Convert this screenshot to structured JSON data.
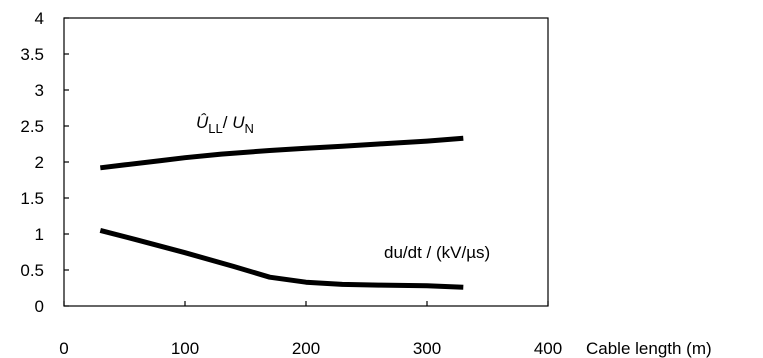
{
  "chart_data": {
    "type": "line",
    "xlabel": "Cable length (m)",
    "xlim": [
      0,
      400
    ],
    "ylim": [
      0,
      4
    ],
    "x_ticks": [
      "0",
      "100",
      "200",
      "300",
      "400"
    ],
    "y_ticks": [
      "0",
      "0.5",
      "1",
      "1.5",
      "2",
      "2.5",
      "3",
      "3.5",
      "4"
    ],
    "grid": false,
    "series": [
      {
        "name": "Û_LL / U_N",
        "label_parts": {
          "main1": "Û",
          "sub1": "LL",
          "sep": "/ ",
          "main2": "U",
          "sub2": "N"
        },
        "x": [
          30,
          50,
          80,
          100,
          130,
          170,
          200,
          230,
          260,
          300,
          330
        ],
        "y": [
          1.92,
          1.96,
          2.02,
          2.06,
          2.11,
          2.16,
          2.19,
          2.22,
          2.25,
          2.29,
          2.33
        ]
      },
      {
        "name": "du/dt / (kV/µs)",
        "x": [
          30,
          60,
          100,
          140,
          170,
          200,
          230,
          260,
          300,
          330
        ],
        "y": [
          1.05,
          0.92,
          0.74,
          0.55,
          0.4,
          0.33,
          0.3,
          0.29,
          0.28,
          0.26
        ]
      }
    ]
  }
}
